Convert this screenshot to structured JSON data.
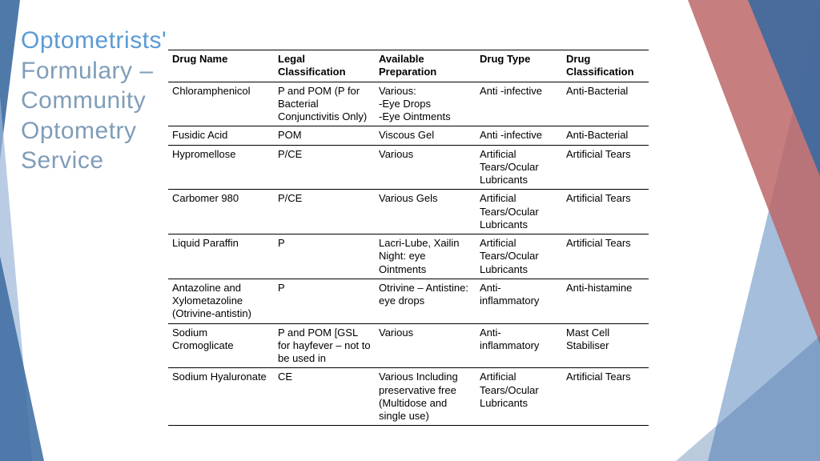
{
  "title": {
    "lines": [
      "Optometrists'",
      "Formulary –",
      "Community",
      "Optometry",
      "Service"
    ],
    "color_primary": "#5b9bd5",
    "color_secondary": "#7f9db9",
    "fontsize": 30
  },
  "accent_colors": {
    "blue_dark": "#3b6aa0",
    "blue_light": "#9cb7d8",
    "red": "#bc6767"
  },
  "table": {
    "columns": [
      "Drug Name",
      "Legal Classification",
      "Available Preparation",
      "Drug Type",
      "Drug Classification"
    ],
    "rows": [
      [
        "Chloramphenicol",
        "P and POM (P for Bacterial Conjunctivitis Only)",
        "Various:\n-Eye Drops\n-Eye Ointments",
        "Anti -infective",
        "Anti-Bacterial"
      ],
      [
        "Fusidic Acid",
        "POM",
        "Viscous Gel",
        "Anti -infective",
        "Anti-Bacterial"
      ],
      [
        "Hypromellose",
        "P/CE",
        "Various",
        "Artificial Tears/Ocular Lubricants",
        "Artificial Tears"
      ],
      [
        "Carbomer 980",
        "P/CE",
        "Various Gels",
        "Artificial Tears/Ocular Lubricants",
        "Artificial Tears"
      ],
      [
        "Liquid Paraffin",
        "P",
        "Lacri-Lube, Xailin Night: eye Ointments",
        "Artificial Tears/Ocular Lubricants",
        "Artificial Tears"
      ],
      [
        "Antazoline and Xylometazoline (Otrivine-antistin)",
        "P",
        "Otrivine – Antistine: eye drops",
        "Anti-inflammatory",
        "Anti-histamine"
      ],
      [
        "Sodium Cromoglicate",
        "P and POM [GSL for hayfever – not to be used in",
        "Various",
        "Anti-inflammatory",
        "Mast Cell Stabiliser"
      ],
      [
        "Sodium Hyaluronate",
        "CE",
        "Various Including preservative free (Multidose and single use)",
        "Artificial Tears/Ocular Lubricants",
        "Artificial Tears"
      ]
    ],
    "header_fontsize": 13,
    "cell_fontsize": 13,
    "border_color": "#000000"
  }
}
